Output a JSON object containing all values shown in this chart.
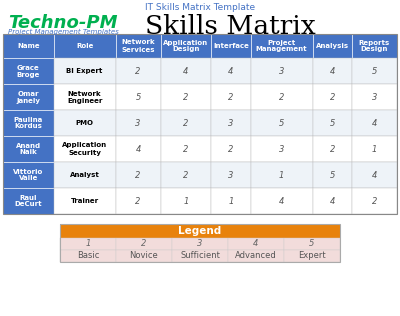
{
  "title_top": "IT Skills Matrix Template",
  "title_top_color": "#4472C4",
  "brand_name": "Techno-PM",
  "brand_color": "#00B050",
  "brand_subtitle": "Project Management Templates",
  "brand_subtitle_color": "#4472C4",
  "main_title": "Skills Matrix",
  "header_bg": "#4472C4",
  "header_text_color": "#FFFFFF",
  "col_headers": [
    "Name",
    "Role",
    "Network\nServices",
    "Application\nDesign",
    "Interface",
    "Project\nManagement",
    "Analysis",
    "Reports\nDesign"
  ],
  "rows": [
    {
      "name": "Grace\nBroge",
      "role": "BI Expert",
      "values": [
        2,
        4,
        4,
        3,
        4,
        5
      ]
    },
    {
      "name": "Omar\nJanely",
      "role": "Network\nEngineer",
      "values": [
        5,
        2,
        2,
        2,
        2,
        3
      ]
    },
    {
      "name": "Paulina\nKordus",
      "role": "PMO",
      "values": [
        3,
        2,
        3,
        5,
        5,
        4
      ]
    },
    {
      "name": "Anand\nNaik",
      "role": "Application\nSecurity",
      "values": [
        4,
        2,
        2,
        3,
        2,
        1
      ]
    },
    {
      "name": "Vittorio\nVaile",
      "role": "Analyst",
      "values": [
        2,
        2,
        3,
        1,
        5,
        4
      ]
    },
    {
      "name": "Raul\nDeCurt",
      "role": "Trainer",
      "values": [
        2,
        1,
        1,
        4,
        4,
        2
      ]
    }
  ],
  "row_bg_odd": "#EEF3F8",
  "row_bg_even": "#FFFFFF",
  "name_col_bg": "#4472C4",
  "name_col_text": "#FFFFFF",
  "legend_header": "Legend",
  "legend_header_bg": "#E8820C",
  "legend_header_text": "#FFFFFF",
  "legend_numbers": [
    "1",
    "2",
    "3",
    "4",
    "5"
  ],
  "legend_labels": [
    "Basic",
    "Novice",
    "Sufficient",
    "Advanced",
    "Expert"
  ],
  "legend_bg": "#F2DCDB",
  "outer_bg": "#FFFFFF",
  "border_color": "#888888"
}
